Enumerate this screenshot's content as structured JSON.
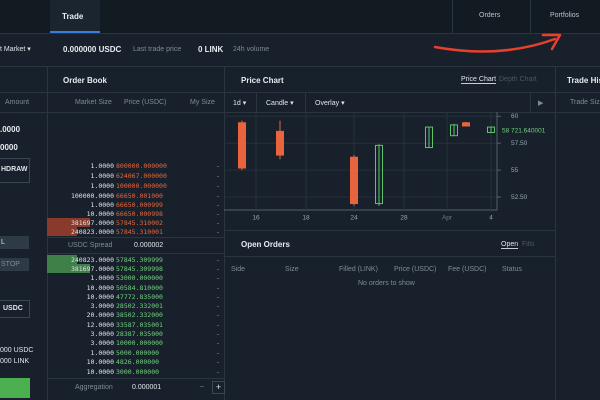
{
  "nav": {
    "tab": "Trade",
    "orders": "Orders",
    "portfolios": "Portfolios"
  },
  "ticker": {
    "market": "t Market",
    "last_price": "0.000000 USDC",
    "last_price_label": "Last trade price",
    "volume": "0 LINK",
    "volume_label": "24h volume"
  },
  "order_form": {
    "amount": "Amount",
    "value1": ".0000",
    "value2": "0000",
    "withdraw": "HDRAW",
    "limit": "L",
    "stop": "STOP",
    "currency": "USDC",
    "balance_usdc": "000 USDC",
    "balance_link": "000 LINK"
  },
  "order_book": {
    "title": "Order Book",
    "columns": [
      "Market Size",
      "Price (USDC)",
      "My Size"
    ],
    "asks": [
      [
        "1.0000",
        "800000.000000",
        "-"
      ],
      [
        "1.0000",
        "624067.000000",
        "-"
      ],
      [
        "1.0000",
        "100000.000000",
        "-"
      ],
      [
        "100000.0000",
        "66650.001000",
        "-"
      ],
      [
        "1.0000",
        "66650.000999",
        "-"
      ],
      [
        "10.0000",
        "66650.000998",
        "-"
      ],
      [
        "381697.0000",
        "57845.310002",
        "-"
      ],
      [
        "240823.0000",
        "57845.310001",
        "-"
      ]
    ],
    "spread_label": "USDC Spread",
    "spread": "0.000002",
    "bids": [
      [
        "240823.0000",
        "57845.309999",
        "-"
      ],
      [
        "381697.0000",
        "57845.309998",
        "-"
      ],
      [
        "1.0000",
        "53000.000000",
        "-"
      ],
      [
        "10.0000",
        "50584.810000",
        "-"
      ],
      [
        "10.0000",
        "47772.835000",
        "-"
      ],
      [
        "3.0000",
        "28502.332001",
        "-"
      ],
      [
        "20.0000",
        "38502.332000",
        "-"
      ],
      [
        "12.0000",
        "33587.035001",
        "-"
      ],
      [
        "3.0000",
        "28387.035000",
        "-"
      ],
      [
        "3.0000",
        "10000.000000",
        "-"
      ],
      [
        "1.0000",
        "5000.000000",
        "-"
      ],
      [
        "10.0000",
        "4826.000000",
        "-"
      ],
      [
        "10.0000",
        "3000.000000",
        "-"
      ]
    ],
    "aggregation_label": "Aggregation",
    "aggregation": "0.000001"
  },
  "price_chart": {
    "title": "Price Chart",
    "toggle": [
      "Price Chart",
      "Depth Chart"
    ],
    "controls": [
      "1d",
      "Candle",
      "Overlay"
    ],
    "type": "candlestick",
    "ylim": [
      51.3,
      60.4
    ],
    "yticks": [
      60,
      {
        "value": 57.5,
        "label": "57.50"
      },
      55,
      {
        "value": 52.5,
        "label": "52.50"
      }
    ],
    "last_label": "58 721.640001",
    "xticks": [
      "16",
      "18",
      "24",
      "28",
      "Apr",
      "4"
    ],
    "candles": [
      {
        "open": 59.4,
        "high": 59.6,
        "low": 55.0,
        "close": 55.2
      },
      {
        "open": 58.6,
        "high": 59.6,
        "low": 56.0,
        "close": 56.4
      },
      {
        "open": 56.2,
        "high": 56.4,
        "low": 51.7,
        "close": 51.9
      },
      {
        "open": 51.9,
        "high": 57.4,
        "low": 51.7,
        "close": 57.3
      },
      {
        "open": 57.1,
        "high": 59.0,
        "low": 57.1,
        "close": 59.0
      },
      {
        "open": 58.2,
        "high": 59.3,
        "low": 58.2,
        "close": 59.2
      },
      {
        "open": 59.4,
        "high": 59.5,
        "low": 59.1,
        "close": 59.1
      },
      {
        "open": 58.5,
        "high": 59.0,
        "low": 58.5,
        "close": 59.0
      }
    ],
    "up_color": "#5cc46a",
    "down_color": "#e8643c"
  },
  "open_orders": {
    "title": "Open Orders",
    "tabs": [
      "Open",
      "Fills"
    ],
    "columns": [
      "Side",
      "Size",
      "Filled (LINK)",
      "Price (USDC)",
      "Fee (USDC)",
      "Status"
    ],
    "empty": "No orders to show"
  },
  "trade_history": {
    "title": "Trade His",
    "column": "Trade Siz"
  }
}
